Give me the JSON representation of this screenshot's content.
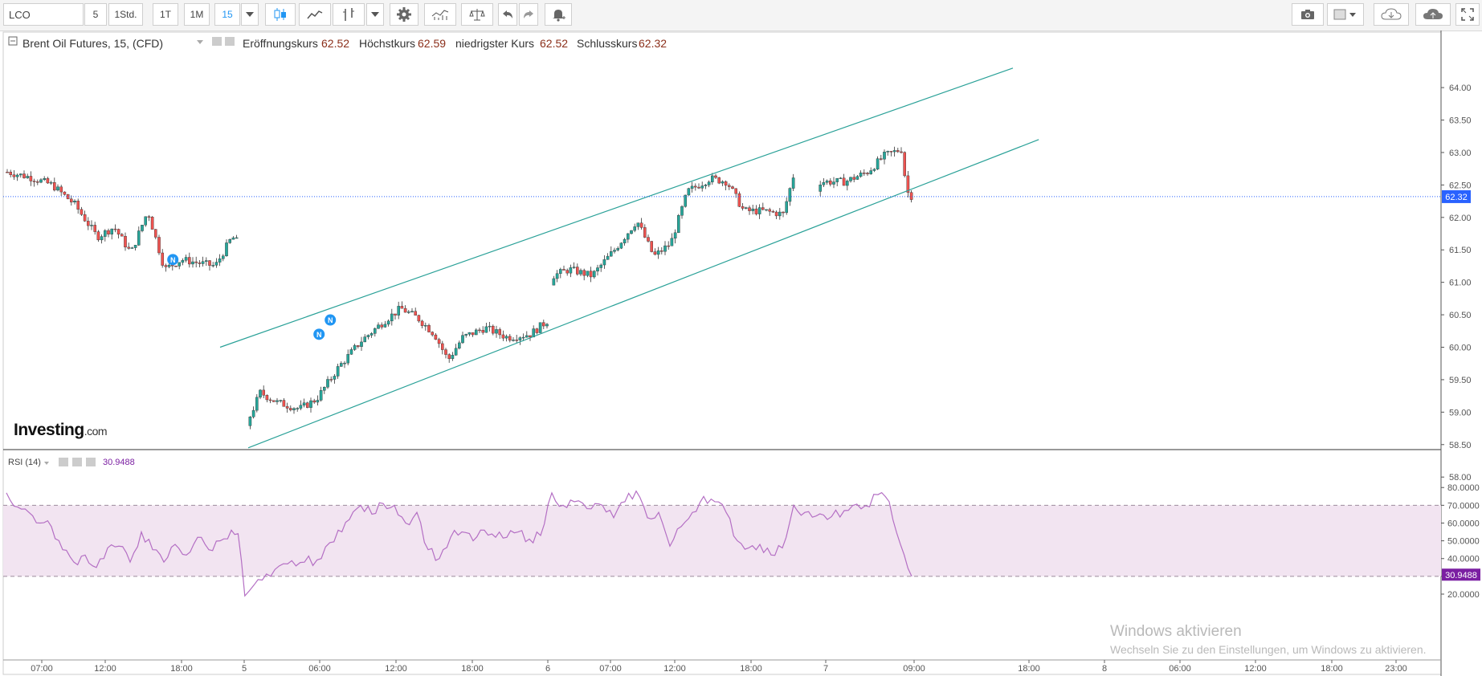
{
  "toolbar": {
    "symbol": "LCO",
    "intervals": [
      "5",
      "1Std.",
      "1T",
      "1M",
      "15"
    ],
    "active_interval": "15",
    "icons": [
      "dropdown-arrow-icon",
      "candlestick-icon",
      "line-chart-icon",
      "bar-chart-icon",
      "dropdown-arrow-icon",
      "settings-gear-icon",
      "indicators-icon",
      "compare-scale-icon",
      "undo-icon",
      "redo-icon",
      "alert-bell-icon",
      "camera-icon",
      "color-box-icon",
      "cloud-download-icon",
      "cloud-upload-icon",
      "fullscreen-icon"
    ]
  },
  "legend": {
    "title": "Brent Oil Futures, 15, (CFD)",
    "open_label": "Eröffnungskurs",
    "open": "62.52",
    "high_label": "Höchstkurs",
    "high": "62.59",
    "low_label": "niedrigster Kurs",
    "low": "62.52",
    "close_label": "Schlusskurs",
    "close": "62.32"
  },
  "rsi_legend": {
    "name": "RSI (14)",
    "value": "30.9488"
  },
  "logo": {
    "main": "Investing",
    "suffix": ".com"
  },
  "watermark": {
    "line1": "Windows aktivieren",
    "line2": "Wechseln Sie zu den Einstellungen, um Windows zu aktivieren."
  },
  "colors": {
    "up": "#26a69a",
    "down": "#ef5350",
    "channel": "#2aa198",
    "rsi_line": "#b46fc4",
    "rsi_band": "#f1e3f1",
    "price_tag": "#2962ff",
    "rsi_tag": "#7b1fa2"
  },
  "chart_data": [
    {
      "type": "candlestick",
      "title": "Brent Oil Futures, 15, (CFD)",
      "y_ticks": [
        "64.00",
        "63.50",
        "63.00",
        "62.50",
        "62.00",
        "61.50",
        "61.00",
        "60.50",
        "60.00",
        "59.50",
        "59.00",
        "58.50",
        "58.00"
      ],
      "ylim": [
        58.0,
        64.2
      ],
      "x_ticks": [
        "07:00",
        "12:00",
        "18:00",
        "5",
        "06:00",
        "12:00",
        "18:00",
        "6",
        "07:00",
        "12:00",
        "18:00",
        "7",
        "09:00",
        "18:00",
        "8",
        "06:00",
        "12:00",
        "18:00",
        "23:00"
      ],
      "last_price": "62.32",
      "news_markers": [
        "N",
        "N",
        "N"
      ],
      "path": [
        [
          0,
          62.7
        ],
        [
          20,
          62.62
        ],
        [
          40,
          62.5
        ],
        [
          60,
          62.2
        ],
        [
          80,
          61.7
        ],
        [
          95,
          61.85
        ],
        [
          110,
          61.45
        ],
        [
          125,
          62.1
        ],
        [
          140,
          61.2
        ],
        [
          155,
          61.35
        ],
        [
          170,
          61.3
        ],
        [
          185,
          61.25
        ],
        [
          200,
          61.7
        ],
        [
          206,
          61.6
        ],
        [
          215,
          58.9
        ],
        [
          225,
          59.3
        ],
        [
          240,
          59.15
        ],
        [
          260,
          59.05
        ],
        [
          275,
          59.2
        ],
        [
          295,
          59.7
        ],
        [
          315,
          60.1
        ],
        [
          335,
          60.4
        ],
        [
          350,
          60.6
        ],
        [
          365,
          60.45
        ],
        [
          380,
          60.2
        ],
        [
          392,
          59.8
        ],
        [
          405,
          60.15
        ],
        [
          425,
          60.3
        ],
        [
          445,
          60.15
        ],
        [
          465,
          60.2
        ],
        [
          480,
          60.4
        ],
        [
          485,
          61.1
        ],
        [
          500,
          61.2
        ],
        [
          520,
          61.1
        ],
        [
          540,
          61.5
        ],
        [
          560,
          61.95
        ],
        [
          575,
          61.4
        ],
        [
          590,
          61.6
        ],
        [
          605,
          62.4
        ],
        [
          625,
          62.6
        ],
        [
          640,
          62.55
        ],
        [
          655,
          62.1
        ],
        [
          672,
          62.1
        ],
        [
          690,
          62.05
        ],
        [
          700,
          62.7
        ],
        [
          720,
          62.55
        ],
        [
          745,
          62.55
        ],
        [
          765,
          62.7
        ],
        [
          780,
          62.95
        ],
        [
          795,
          63.05
        ],
        [
          800,
          62.4
        ],
        [
          806,
          62.3
        ]
      ],
      "gaps_after_index": [
        13,
        30,
        44
      ],
      "channel": {
        "upper": [
          [
            190,
            60.0
          ],
          [
            895,
            64.3
          ]
        ],
        "lower": [
          [
            215,
            58.45
          ],
          [
            918,
            63.2
          ]
        ]
      }
    },
    {
      "type": "line",
      "title": "RSI (14)",
      "y_ticks": [
        "80.0000",
        "70.0000",
        "60.0000",
        "50.0000",
        "40.0000",
        "30.0000",
        "20.0000"
      ],
      "ylim": [
        17,
        82
      ],
      "band": [
        30,
        70
      ],
      "last_value": "30.9488",
      "path": [
        [
          0,
          77
        ],
        [
          10,
          69
        ],
        [
          20,
          66
        ],
        [
          30,
          60
        ],
        [
          40,
          58
        ],
        [
          50,
          45
        ],
        [
          60,
          38
        ],
        [
          70,
          42
        ],
        [
          80,
          35
        ],
        [
          90,
          46
        ],
        [
          100,
          47
        ],
        [
          110,
          38
        ],
        [
          120,
          55
        ],
        [
          130,
          45
        ],
        [
          140,
          38
        ],
        [
          150,
          48
        ],
        [
          160,
          42
        ],
        [
          170,
          52
        ],
        [
          180,
          45
        ],
        [
          190,
          50
        ],
        [
          200,
          56
        ],
        [
          206,
          54
        ],
        [
          212,
          19
        ],
        [
          220,
          25
        ],
        [
          235,
          30
        ],
        [
          250,
          37
        ],
        [
          265,
          38
        ],
        [
          280,
          40
        ],
        [
          295,
          56
        ],
        [
          305,
          62
        ],
        [
          315,
          70
        ],
        [
          325,
          65
        ],
        [
          335,
          71
        ],
        [
          345,
          70
        ],
        [
          355,
          60
        ],
        [
          365,
          66
        ],
        [
          375,
          45
        ],
        [
          385,
          40
        ],
        [
          395,
          52
        ],
        [
          405,
          55
        ],
        [
          415,
          50
        ],
        [
          425,
          56
        ],
        [
          435,
          52
        ],
        [
          445,
          52
        ],
        [
          455,
          55
        ],
        [
          465,
          51
        ],
        [
          475,
          53
        ],
        [
          485,
          77
        ],
        [
          495,
          70
        ],
        [
          505,
          72
        ],
        [
          520,
          68
        ],
        [
          530,
          70
        ],
        [
          540,
          63
        ],
        [
          550,
          72
        ],
        [
          560,
          78
        ],
        [
          570,
          63
        ],
        [
          580,
          66
        ],
        [
          590,
          47
        ],
        [
          600,
          58
        ],
        [
          610,
          66
        ],
        [
          620,
          75
        ],
        [
          630,
          72
        ],
        [
          640,
          66
        ],
        [
          650,
          50
        ],
        [
          660,
          46
        ],
        [
          670,
          48
        ],
        [
          680,
          42
        ],
        [
          690,
          46
        ],
        [
          700,
          70
        ],
        [
          710,
          66
        ],
        [
          720,
          64
        ],
        [
          730,
          62
        ],
        [
          745,
          67
        ],
        [
          760,
          68
        ],
        [
          775,
          76
        ],
        [
          785,
          72
        ],
        [
          795,
          48
        ],
        [
          805,
          30
        ]
      ]
    }
  ]
}
